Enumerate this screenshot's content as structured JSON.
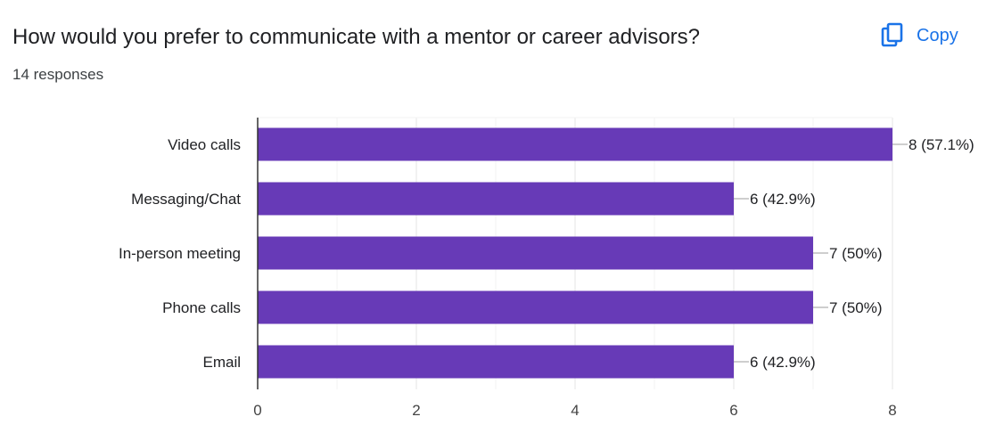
{
  "header": {
    "question": "How would you prefer to communicate with a mentor or career advisors?",
    "responses": "14 responses",
    "copy_label": "Copy"
  },
  "colors": {
    "bar": "#673ab7",
    "accent": "#1a73e8",
    "grid": "#eeeeee",
    "axis": "#333333",
    "text": "#202124"
  },
  "chart_data": {
    "type": "bar",
    "orientation": "horizontal",
    "categories": [
      "Video calls",
      "Messaging/Chat",
      "In-person meeting",
      "Phone calls",
      "Email"
    ],
    "values": [
      8,
      6,
      7,
      7,
      6
    ],
    "data_labels": [
      "8 (57.1%)",
      "6 (42.9%)",
      "7 (50%)",
      "7 (50%)",
      "6 (42.9%)"
    ],
    "xlim": [
      0,
      8
    ],
    "xticks": [
      0,
      2,
      4,
      6,
      8
    ],
    "grid": true
  }
}
